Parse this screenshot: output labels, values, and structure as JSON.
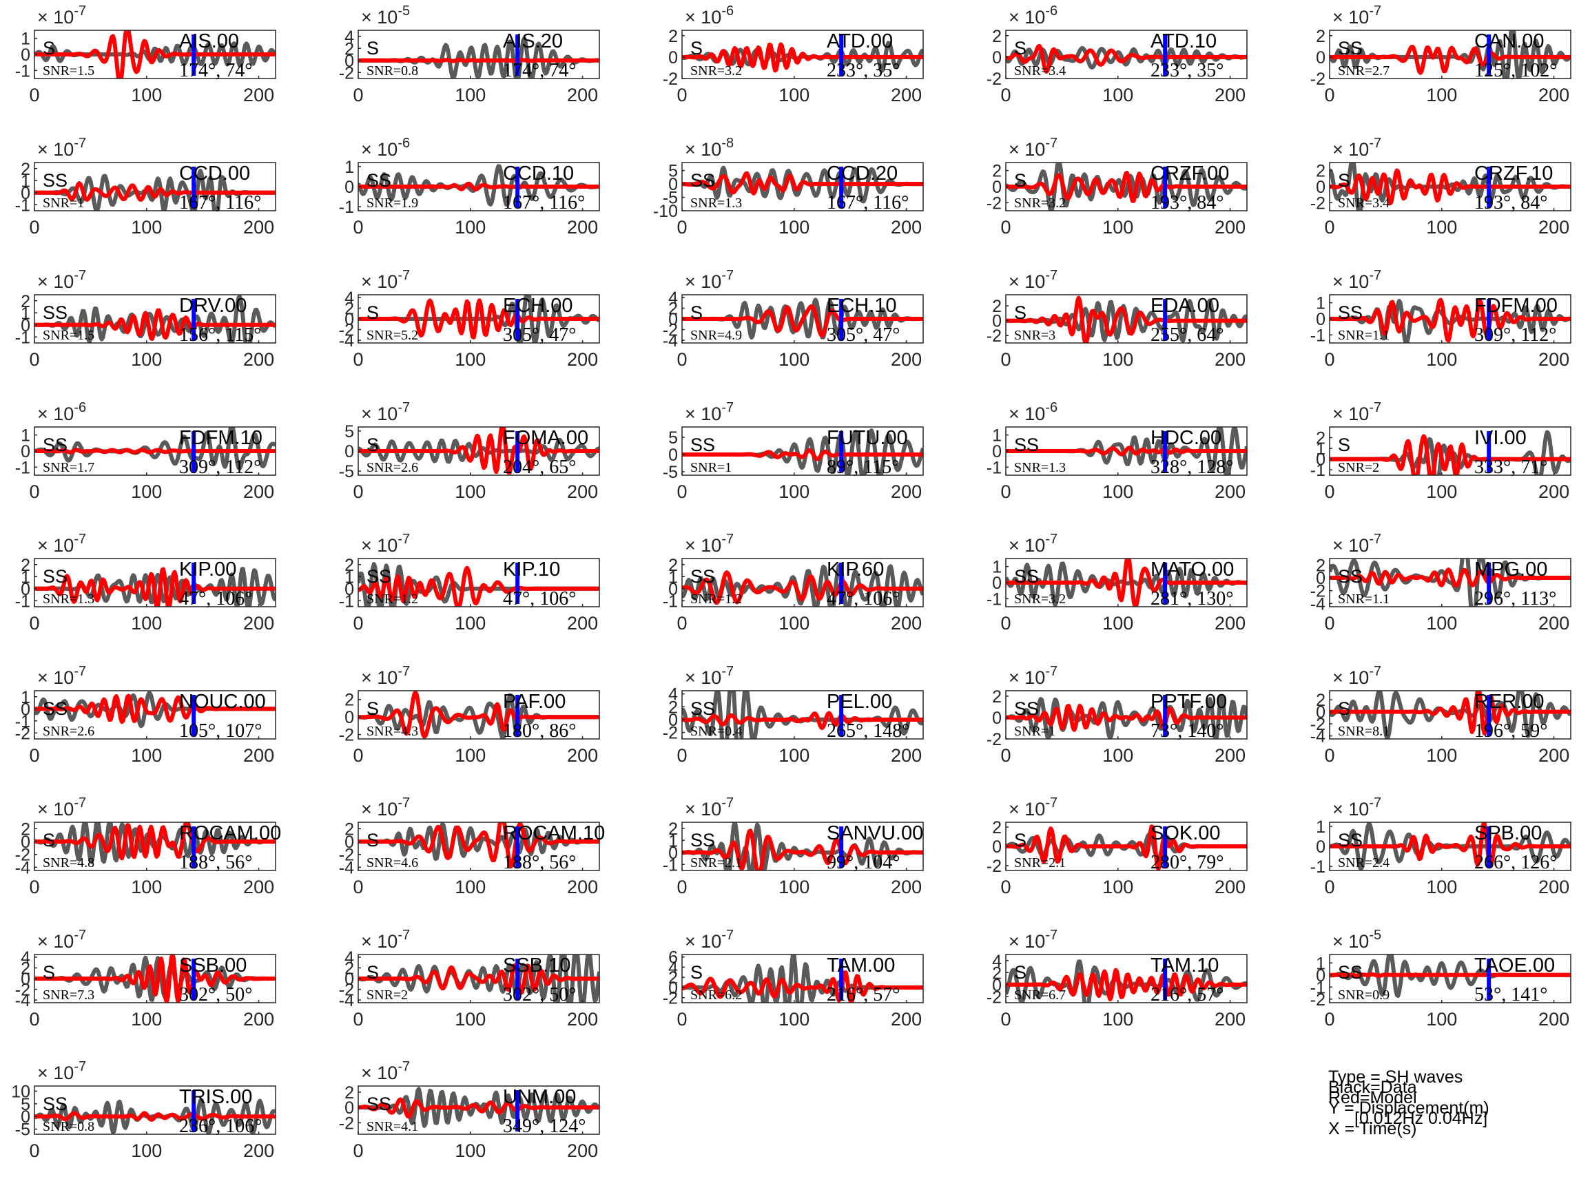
{
  "figure": {
    "legend": {
      "type_line": "Type = SH waves",
      "black_line": "Black=Data",
      "red_line": "Red=Model",
      "y_line": "Y = Displacement(m)",
      "band_line": "[0.012Hz 0.04Hz]",
      "x_line": "X = Time(s)"
    },
    "colors": {
      "data": "#5a5a5a",
      "model": "#ff0000",
      "marker": "#0000ff",
      "axes": "#262626"
    },
    "x_tick_labels": [
      "0",
      "100",
      "200"
    ],
    "x_ticks": [
      0,
      100,
      200
    ],
    "x_range": [
      0,
      215
    ],
    "marker_time": 142
  },
  "chart_data": [
    {
      "station": "AIS.00",
      "phase": "S",
      "snr": "SNR=1.5",
      "angles": "174°, 74°",
      "exponent": "-7",
      "ylim": [
        -1.5,
        1.5
      ],
      "yticks": [
        "1",
        "0",
        "-1"
      ],
      "ytick_values": [
        1,
        0,
        -1
      ],
      "model_amp": 1.3,
      "data_amp": 0.8,
      "seed": 1
    },
    {
      "station": "AIS.20",
      "phase": "S",
      "snr": "SNR=0.8",
      "angles": "174°, 74°",
      "exponent": "-5",
      "ylim": [
        -3,
        5
      ],
      "yticks": [
        "4",
        "2",
        "0",
        "-2"
      ],
      "ytick_values": [
        4,
        2,
        0,
        -2
      ],
      "model_amp": 0.1,
      "data_amp": 4,
      "seed": 2
    },
    {
      "station": "ATD.00",
      "phase": "S",
      "snr": "SNR=3.2",
      "angles": "233°, 35°",
      "exponent": "-6",
      "ylim": [
        -2,
        2.5
      ],
      "yticks": [
        "2",
        "0",
        "-2"
      ],
      "ytick_values": [
        2,
        0,
        -2
      ],
      "model_amp": 0.9,
      "data_amp": 1.1,
      "seed": 3
    },
    {
      "station": "ATD.10",
      "phase": "S",
      "snr": "SNR=3.4",
      "angles": "233°, 35°",
      "exponent": "-6",
      "ylim": [
        -2,
        2.5
      ],
      "yticks": [
        "2",
        "0",
        "-2"
      ],
      "ytick_values": [
        2,
        0,
        -2
      ],
      "model_amp": 0.9,
      "data_amp": 1.1,
      "seed": 4
    },
    {
      "station": "CAN.00",
      "phase": "SS",
      "snr": "SNR=2.7",
      "angles": "125°, 102°",
      "exponent": "-7",
      "ylim": [
        -2,
        2.5
      ],
      "yticks": [
        "2",
        "0",
        "-2"
      ],
      "ytick_values": [
        2,
        0,
        -2
      ],
      "model_amp": 1.6,
      "data_amp": 1.8,
      "seed": 5
    },
    {
      "station": "CCD.00",
      "phase": "SS",
      "snr": "SNR=1",
      "angles": "167°, 116°",
      "exponent": "-7",
      "ylim": [
        -1.5,
        2.5
      ],
      "yticks": [
        "2",
        "1",
        "0",
        "-1"
      ],
      "ytick_values": [
        2,
        1,
        0,
        -1
      ],
      "model_amp": 1.0,
      "data_amp": 1.8,
      "seed": 6
    },
    {
      "station": "CCD.10",
      "phase": "SS",
      "snr": "SNR=1.9",
      "angles": "167°, 116°",
      "exponent": "-6",
      "ylim": [
        -1.2,
        1.2
      ],
      "yticks": [
        "1",
        "0",
        "-1"
      ],
      "ytick_values": [
        1,
        0,
        -1
      ],
      "model_amp": 0.1,
      "data_amp": 1.0,
      "seed": 7
    },
    {
      "station": "CCD.20",
      "phase": "SS",
      "snr": "SNR=1.3",
      "angles": "167°, 116°",
      "exponent": "-8",
      "ylim": [
        -10,
        8
      ],
      "yticks": [
        "5",
        "0",
        "-5",
        "-10"
      ],
      "ytick_values": [
        5,
        0,
        -5,
        -10
      ],
      "model_amp": 4,
      "data_amp": 7,
      "seed": 8
    },
    {
      "station": "CRZF.00",
      "phase": "S",
      "snr": "SNR=3.2",
      "angles": "193°, 84°",
      "exponent": "-7",
      "ylim": [
        -3,
        3
      ],
      "yticks": [
        "2",
        "0",
        "-2"
      ],
      "ytick_values": [
        2,
        0,
        -2
      ],
      "model_amp": 2.5,
      "data_amp": 2.4,
      "seed": 9
    },
    {
      "station": "CRZF.10",
      "phase": "S",
      "snr": "SNR=3.4",
      "angles": "193°, 84°",
      "exponent": "-7",
      "ylim": [
        -3,
        3
      ],
      "yticks": [
        "2",
        "0",
        "-2"
      ],
      "ytick_values": [
        2,
        0,
        -2
      ],
      "model_amp": 2.5,
      "data_amp": 2.4,
      "seed": 10
    },
    {
      "station": "DRV.00",
      "phase": "SS",
      "snr": "SNR=1.5",
      "angles": "156°, 115°",
      "exponent": "-7",
      "ylim": [
        -1.5,
        2.5
      ],
      "yticks": [
        "2",
        "1",
        "0",
        "-1"
      ],
      "ytick_values": [
        2,
        1,
        0,
        -1
      ],
      "model_amp": 1.0,
      "data_amp": 1.7,
      "seed": 11
    },
    {
      "station": "ECH.00",
      "phase": "S",
      "snr": "SNR=5.2",
      "angles": "305°, 47°",
      "exponent": "-7",
      "ylim": [
        -4.5,
        4.5
      ],
      "yticks": [
        "4",
        "2",
        "0",
        "-2",
        "-4"
      ],
      "ytick_values": [
        4,
        2,
        0,
        -2,
        -4
      ],
      "model_amp": 3.5,
      "data_amp": 3.8,
      "seed": 12
    },
    {
      "station": "ECH.10",
      "phase": "S",
      "snr": "SNR=4.9",
      "angles": "305°, 47°",
      "exponent": "-7",
      "ylim": [
        -4.5,
        4.5
      ],
      "yticks": [
        "4",
        "2",
        "0",
        "-2",
        "-4"
      ],
      "ytick_values": [
        4,
        2,
        0,
        -2,
        -4
      ],
      "model_amp": 3.5,
      "data_amp": 3.8,
      "seed": 13
    },
    {
      "station": "EDA.00",
      "phase": "S",
      "snr": "SNR=3",
      "angles": "255°, 64°",
      "exponent": "-7",
      "ylim": [
        -3,
        3.5
      ],
      "yticks": [
        "2",
        "0",
        "-2"
      ],
      "ytick_values": [
        2,
        0,
        -2
      ],
      "model_amp": 2.6,
      "data_amp": 2.7,
      "seed": 14
    },
    {
      "station": "FDFM.00",
      "phase": "SS",
      "snr": "SNR=1.1",
      "angles": "309°, 112°",
      "exponent": "-7",
      "ylim": [
        -1.5,
        1.5
      ],
      "yticks": [
        "1",
        "0",
        "-1"
      ],
      "ytick_values": [
        1,
        0,
        -1
      ],
      "model_amp": 1.3,
      "data_amp": 1.0,
      "seed": 15
    },
    {
      "station": "FDFM.10",
      "phase": "SS",
      "snr": "SNR=1.7",
      "angles": "309°, 112°",
      "exponent": "-6",
      "ylim": [
        -1.5,
        1.5
      ],
      "yticks": [
        "1",
        "0",
        "-1"
      ],
      "ytick_values": [
        1,
        0,
        -1
      ],
      "model_amp": 0.1,
      "data_amp": 1.1,
      "seed": 16
    },
    {
      "station": "FOMA.00",
      "phase": "S",
      "snr": "SNR=2.6",
      "angles": "204°, 65°",
      "exponent": "-7",
      "ylim": [
        -6,
        6
      ],
      "yticks": [
        "5",
        "0",
        "-5"
      ],
      "ytick_values": [
        5,
        0,
        -5
      ],
      "model_amp": 4.5,
      "data_amp": 4.8,
      "seed": 17
    },
    {
      "station": "FUTU.00",
      "phase": "SS",
      "snr": "SNR=1",
      "angles": "89°, 115°",
      "exponent": "-7",
      "ylim": [
        -6,
        8
      ],
      "yticks": [
        "5",
        "0",
        "-5"
      ],
      "ytick_values": [
        5,
        0,
        -5
      ],
      "model_amp": 0.8,
      "data_amp": 6,
      "seed": 18
    },
    {
      "station": "HDC.00",
      "phase": "SS",
      "snr": "SNR=1.3",
      "angles": "328°, 128°",
      "exponent": "-6",
      "ylim": [
        -1.5,
        1.5
      ],
      "yticks": [
        "1",
        "0",
        "-1"
      ],
      "ytick_values": [
        1,
        0,
        -1
      ],
      "model_amp": 0.2,
      "data_amp": 1.2,
      "seed": 19
    },
    {
      "station": "IVI.00",
      "phase": "S",
      "snr": "SNR=2",
      "angles": "333°, 71°",
      "exponent": "-7",
      "ylim": [
        -1.5,
        3
      ],
      "yticks": [
        "2",
        "1",
        "0",
        "-1"
      ],
      "ytick_values": [
        2,
        1,
        0,
        -1
      ],
      "model_amp": 2.2,
      "data_amp": 1.8,
      "seed": 20
    },
    {
      "station": "KIP.00",
      "phase": "SS",
      "snr": "SNR=1.3",
      "angles": "47°, 106°",
      "exponent": "-7",
      "ylim": [
        -1.5,
        2.5
      ],
      "yticks": [
        "2",
        "1",
        "0",
        "-1"
      ],
      "ytick_values": [
        2,
        1,
        0,
        -1
      ],
      "model_amp": 1.9,
      "data_amp": 1.6,
      "seed": 21
    },
    {
      "station": "KIP.10",
      "phase": "SS",
      "snr": "SNR=1.2",
      "angles": "47°, 106°",
      "exponent": "-7",
      "ylim": [
        -1.5,
        2.5
      ],
      "yticks": [
        "2",
        "1",
        "0",
        "-1"
      ],
      "ytick_values": [
        2,
        1,
        0,
        -1
      ],
      "model_amp": 1.9,
      "data_amp": 1.6,
      "seed": 22
    },
    {
      "station": "KIP.60",
      "phase": "SS",
      "snr": "SNR=1.2",
      "angles": "47°, 106°",
      "exponent": "-7",
      "ylim": [
        -1.5,
        2.5
      ],
      "yticks": [
        "2",
        "1",
        "0",
        "-1"
      ],
      "ytick_values": [
        2,
        1,
        0,
        -1
      ],
      "model_amp": 1.9,
      "data_amp": 1.6,
      "seed": 23
    },
    {
      "station": "MATO.00",
      "phase": "SS",
      "snr": "SNR=3.2",
      "angles": "281°, 130°",
      "exponent": "-7",
      "ylim": [
        -1.5,
        1.5
      ],
      "yticks": [
        "1",
        "0",
        "-1"
      ],
      "ytick_values": [
        1,
        0,
        -1
      ],
      "model_amp": 1.3,
      "data_amp": 1.1,
      "seed": 24
    },
    {
      "station": "MPG.00",
      "phase": "SS",
      "snr": "SNR=1.1",
      "angles": "296°, 113°",
      "exponent": "-7",
      "ylim": [
        -4.5,
        3
      ],
      "yticks": [
        "2",
        "0",
        "-2",
        "-4"
      ],
      "ytick_values": [
        2,
        0,
        -2,
        -4
      ],
      "model_amp": 1.2,
      "data_amp": 3.2,
      "seed": 25
    },
    {
      "station": "NOUC.00",
      "phase": "SS",
      "snr": "SNR=2.6",
      "angles": "105°, 107°",
      "exponent": "-7",
      "ylim": [
        -2.5,
        1.5
      ],
      "yticks": [
        "1",
        "0",
        "-1",
        "-2"
      ],
      "ytick_values": [
        1,
        0,
        -1,
        -2
      ],
      "model_amp": 1.6,
      "data_amp": 1.7,
      "seed": 26
    },
    {
      "station": "PAF.00",
      "phase": "S",
      "snr": "SNR=4.3",
      "angles": "180°, 86°",
      "exponent": "-7",
      "ylim": [
        -2.5,
        3
      ],
      "yticks": [
        "2",
        "0",
        "-2"
      ],
      "ytick_values": [
        2,
        0,
        -2
      ],
      "model_amp": 2.0,
      "data_amp": 2.1,
      "seed": 27
    },
    {
      "station": "PEL.00",
      "phase": "SS",
      "snr": "SNR=0.4",
      "angles": "265°, 148°",
      "exponent": "-7",
      "ylim": [
        -3,
        4.5
      ],
      "yticks": [
        "4",
        "2",
        "0",
        "-2"
      ],
      "ytick_values": [
        4,
        2,
        0,
        -2
      ],
      "model_amp": 1.0,
      "data_amp": 3.2,
      "seed": 28
    },
    {
      "station": "PPTF.00",
      "phase": "SS",
      "snr": "SNR=1",
      "angles": "73°, 140°",
      "exponent": "-7",
      "ylim": [
        -2,
        2.5
      ],
      "yticks": [
        "2",
        "0",
        "-2"
      ],
      "ytick_values": [
        2,
        0,
        -2
      ],
      "model_amp": 1.2,
      "data_amp": 2.0,
      "seed": 29
    },
    {
      "station": "RER.00",
      "phase": "S",
      "snr": "SNR=8.1",
      "angles": "196°, 59°",
      "exponent": "-7",
      "ylim": [
        -4.5,
        3.5
      ],
      "yticks": [
        "2",
        "0",
        "-2",
        "-4"
      ],
      "ytick_values": [
        2,
        0,
        -2,
        -4
      ],
      "model_amp": 3.4,
      "data_amp": 3.3,
      "seed": 30
    },
    {
      "station": "ROCAM.00",
      "phase": "S",
      "snr": "SNR=4.8",
      "angles": "188°, 56°",
      "exponent": "-7",
      "ylim": [
        -4.5,
        3
      ],
      "yticks": [
        "2",
        "0",
        "-2",
        "-4"
      ],
      "ytick_values": [
        2,
        0,
        -2,
        -4
      ],
      "model_amp": 3.0,
      "data_amp": 3.0,
      "seed": 31
    },
    {
      "station": "ROCAM.10",
      "phase": "S",
      "snr": "SNR=4.6",
      "angles": "188°, 56°",
      "exponent": "-7",
      "ylim": [
        -4.5,
        3
      ],
      "yticks": [
        "2",
        "0",
        "-2",
        "-4"
      ],
      "ytick_values": [
        2,
        0,
        -2,
        -4
      ],
      "model_amp": 3.0,
      "data_amp": 3.0,
      "seed": 32
    },
    {
      "station": "SANVU.00",
      "phase": "SS",
      "snr": "SNR=2.1",
      "angles": "99°, 104°",
      "exponent": "-7",
      "ylim": [
        -1.5,
        2.5
      ],
      "yticks": [
        "2",
        "1",
        "0",
        "-1"
      ],
      "ytick_values": [
        2,
        1,
        0,
        -1
      ],
      "model_amp": 1.5,
      "data_amp": 1.6,
      "seed": 33
    },
    {
      "station": "SOK.00",
      "phase": "S",
      "snr": "SNR=2.1",
      "angles": "280°, 79°",
      "exponent": "-7",
      "ylim": [
        -2.5,
        2.5
      ],
      "yticks": [
        "2",
        "0",
        "-2"
      ],
      "ytick_values": [
        2,
        0,
        -2
      ],
      "model_amp": 2.0,
      "data_amp": 2.1,
      "seed": 34
    },
    {
      "station": "SPB.00",
      "phase": "SS",
      "snr": "SNR=2.4",
      "angles": "266°, 126°",
      "exponent": "-7",
      "ylim": [
        -1.2,
        1.2
      ],
      "yticks": [
        "1",
        "0",
        "-1"
      ],
      "ytick_values": [
        1,
        0,
        -1
      ],
      "model_amp": 0.9,
      "data_amp": 0.9,
      "seed": 35
    },
    {
      "station": "SSB.00",
      "phase": "S",
      "snr": "SNR=7.3",
      "angles": "302°, 50°",
      "exponent": "-7",
      "ylim": [
        -4.5,
        4.5
      ],
      "yticks": [
        "4",
        "2",
        "0",
        "-2",
        "-4"
      ],
      "ytick_values": [
        4,
        2,
        0,
        -2,
        -4
      ],
      "model_amp": 3.8,
      "data_amp": 3.6,
      "seed": 36
    },
    {
      "station": "SSB.10",
      "phase": "S",
      "snr": "SNR=2",
      "angles": "302°, 50°",
      "exponent": "-7",
      "ylim": [
        -4.5,
        4.5
      ],
      "yticks": [
        "4",
        "2",
        "0",
        "-2",
        "-4"
      ],
      "ytick_values": [
        4,
        2,
        0,
        -2,
        -4
      ],
      "model_amp": 3.2,
      "data_amp": 3.5,
      "seed": 37
    },
    {
      "station": "TAM.00",
      "phase": "S",
      "snr": "SNR=6.2",
      "angles": "216°, 57°",
      "exponent": "-7",
      "ylim": [
        -3,
        6.5
      ],
      "yticks": [
        "6",
        "4",
        "2",
        "0",
        "-2"
      ],
      "ytick_values": [
        6,
        4,
        2,
        0,
        -2
      ],
      "model_amp": 3.2,
      "data_amp": 3.6,
      "seed": 38
    },
    {
      "station": "TAM.10",
      "phase": "S",
      "snr": "SNR=6.7",
      "angles": "216°, 57°",
      "exponent": "-7",
      "ylim": [
        -3,
        5
      ],
      "yticks": [
        "4",
        "2",
        "0",
        "-2"
      ],
      "ytick_values": [
        4,
        2,
        0,
        -2
      ],
      "model_amp": 2.8,
      "data_amp": 3.0,
      "seed": 39
    },
    {
      "station": "TAOE.00",
      "phase": "SS",
      "snr": "SNR=0.9",
      "angles": "53°, 141°",
      "exponent": "-5",
      "ylim": [
        -2.3,
        1.7
      ],
      "yticks": [
        "1",
        "0",
        "-1",
        "-2"
      ],
      "ytick_values": [
        1,
        0,
        -1,
        -2
      ],
      "model_amp": 0.05,
      "data_amp": 1.4,
      "seed": 40
    },
    {
      "station": "TRIS.00",
      "phase": "SS",
      "snr": "SNR=0.8",
      "angles": "236°, 106°",
      "exponent": "-7",
      "ylim": [
        -7,
        12
      ],
      "yticks": [
        "10",
        "5",
        "0",
        "-5"
      ],
      "ytick_values": [
        10,
        5,
        0,
        -5
      ],
      "model_amp": 1.5,
      "data_amp": 8,
      "seed": 41
    },
    {
      "station": "UNM.00",
      "phase": "SS",
      "snr": "SNR=4.1",
      "angles": "349°, 124°",
      "exponent": "-7",
      "ylim": [
        -3.5,
        2.8
      ],
      "yticks": [
        "2",
        "0",
        "-2"
      ],
      "ytick_values": [
        2,
        0,
        -2
      ],
      "model_amp": 1.0,
      "data_amp": 2.2,
      "seed": 42
    }
  ]
}
